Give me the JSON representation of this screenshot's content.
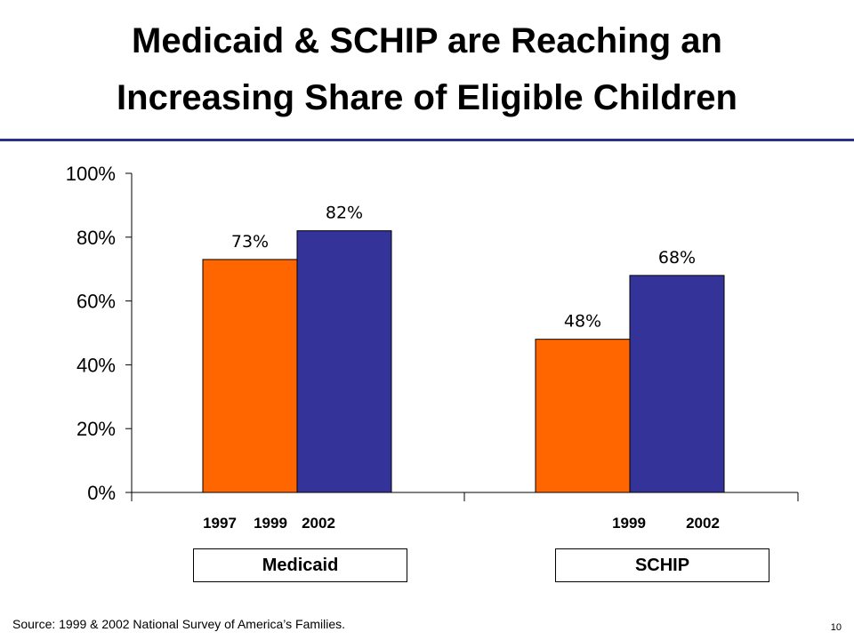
{
  "slide": {
    "title_line1": "Medicaid & SCHIP are Reaching an",
    "title_line2": "Increasing Share of Eligible Children",
    "source": "Source: 1999 & 2002 National Survey of America’s Families.",
    "page_number": "10"
  },
  "colors": {
    "title_rule": "#2b2f8f",
    "orange": "#ff6600",
    "blue": "#333399",
    "axis": "#000000"
  },
  "chart_data": {
    "type": "bar",
    "ylim": [
      0,
      100
    ],
    "yticks": [
      "0%",
      "20%",
      "40%",
      "60%",
      "80%",
      "100%"
    ],
    "grid": false,
    "legend": "none",
    "groups": [
      {
        "name": "Medicaid",
        "bars": [
          {
            "year": "1997",
            "value": 73,
            "label": "73%",
            "color": "orange"
          },
          {
            "year": "1999",
            "value": 82,
            "label": "82%",
            "color": "blue"
          },
          {
            "year": "2002",
            "value": null,
            "label": "",
            "color": "blue"
          }
        ],
        "year_labels": [
          "1997",
          "1999",
          "2002"
        ]
      },
      {
        "name": "SCHIP",
        "bars": [
          {
            "year": "1999",
            "value": 48,
            "label": "48%",
            "color": "orange"
          },
          {
            "year": "2002",
            "value": 68,
            "label": "68%",
            "color": "blue"
          }
        ],
        "year_labels": [
          "1999",
          "2002"
        ]
      }
    ]
  }
}
